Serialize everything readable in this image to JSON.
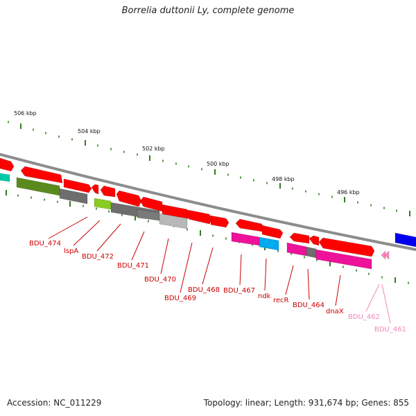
{
  "title": "Borrelia duttonii Ly, complete genome",
  "footer": {
    "accession": "Accession: NC_011229",
    "summary": "Topology: linear; Length: 931,674 bp; Genes: 855"
  },
  "ruler": {
    "unit_labels": [
      "506 kbp",
      "504 kbp",
      "502 kbp",
      "500 kbp",
      "498 kbp",
      "496 kbp"
    ]
  },
  "colors": {
    "backbone": "#8c8c8c",
    "tick": "#2e7d1e",
    "label_red": "#cc0000",
    "label_pink": "#ee88bb",
    "gene_red": "#ff0000",
    "gene_magenta": "#ee1199",
    "gene_cyan": "#00aaee",
    "gene_gray": "#6e6e6e",
    "gene_light_gray": "#b8b8b8",
    "gene_lime": "#88cc22",
    "gene_olive": "#5a8a1e",
    "gene_blue": "#0000ee",
    "gene_teal": "#00ccaa",
    "gene_pink": "#ff88bb"
  },
  "gene_labels": [
    {
      "name": "BDU_474",
      "color": "red"
    },
    {
      "name": "lspA",
      "color": "red"
    },
    {
      "name": "BDU_472",
      "color": "red"
    },
    {
      "name": "BDU_471",
      "color": "red"
    },
    {
      "name": "BDU_470",
      "color": "red"
    },
    {
      "name": "BDU_469",
      "color": "red"
    },
    {
      "name": "BDU_468",
      "color": "red"
    },
    {
      "name": "BDU_467",
      "color": "red"
    },
    {
      "name": "ndk",
      "color": "red"
    },
    {
      "name": "recR",
      "color": "red"
    },
    {
      "name": "BDU_464",
      "color": "red"
    },
    {
      "name": "dnaX",
      "color": "red"
    },
    {
      "name": "BDU_462",
      "color": "pink"
    },
    {
      "name": "BDU_461",
      "color": "pink"
    }
  ]
}
